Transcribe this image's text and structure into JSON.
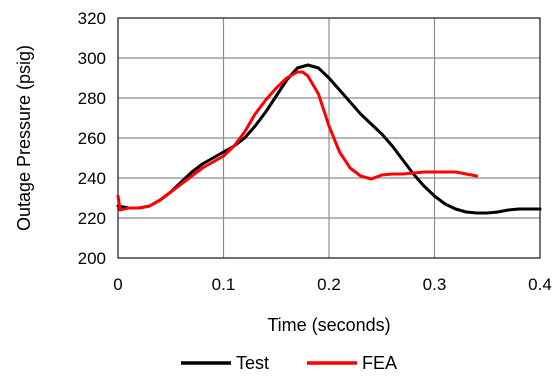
{
  "chart_data": {
    "type": "line",
    "title": "",
    "xlabel": "Time (seconds)",
    "ylabel": "Outage Pressure (psig)",
    "xlim": [
      0,
      0.4
    ],
    "ylim": [
      200,
      320
    ],
    "xticks": [
      0,
      0.1,
      0.2,
      0.3,
      0.4
    ],
    "xtick_labels": [
      "0",
      "0.1",
      "0.2",
      "0.3",
      "0.4"
    ],
    "yticks": [
      200,
      220,
      240,
      260,
      280,
      300,
      320
    ],
    "ytick_labels": [
      "200",
      "220",
      "240",
      "260",
      "280",
      "300",
      "320"
    ],
    "grid": true,
    "legend_position": "bottom",
    "series": [
      {
        "name": "Test",
        "color": "#000000",
        "points": [
          [
            0.0,
            226
          ],
          [
            0.01,
            225
          ],
          [
            0.02,
            225
          ],
          [
            0.03,
            226
          ],
          [
            0.04,
            229
          ],
          [
            0.05,
            233
          ],
          [
            0.06,
            238
          ],
          [
            0.07,
            243
          ],
          [
            0.08,
            247
          ],
          [
            0.09,
            250
          ],
          [
            0.1,
            253
          ],
          [
            0.11,
            256
          ],
          [
            0.12,
            260
          ],
          [
            0.13,
            266
          ],
          [
            0.14,
            273
          ],
          [
            0.15,
            281
          ],
          [
            0.16,
            289
          ],
          [
            0.17,
            295
          ],
          [
            0.18,
            296.5
          ],
          [
            0.19,
            295
          ],
          [
            0.2,
            290
          ],
          [
            0.21,
            284
          ],
          [
            0.22,
            278
          ],
          [
            0.23,
            272
          ],
          [
            0.24,
            267
          ],
          [
            0.25,
            262
          ],
          [
            0.26,
            256
          ],
          [
            0.27,
            249
          ],
          [
            0.28,
            242
          ],
          [
            0.29,
            236
          ],
          [
            0.3,
            231
          ],
          [
            0.31,
            227
          ],
          [
            0.32,
            224.5
          ],
          [
            0.33,
            223
          ],
          [
            0.34,
            222.5
          ],
          [
            0.35,
            222.5
          ],
          [
            0.36,
            223
          ],
          [
            0.37,
            224
          ],
          [
            0.38,
            224.5
          ],
          [
            0.39,
            224.5
          ],
          [
            0.4,
            224.5
          ]
        ]
      },
      {
        "name": "FEA",
        "color": "#ff0000",
        "points": [
          [
            0.0,
            231
          ],
          [
            0.002,
            224
          ],
          [
            0.01,
            225
          ],
          [
            0.02,
            225
          ],
          [
            0.03,
            226
          ],
          [
            0.04,
            229
          ],
          [
            0.05,
            233
          ],
          [
            0.06,
            237
          ],
          [
            0.07,
            241
          ],
          [
            0.08,
            245
          ],
          [
            0.09,
            248
          ],
          [
            0.1,
            251
          ],
          [
            0.11,
            256
          ],
          [
            0.12,
            263
          ],
          [
            0.13,
            272
          ],
          [
            0.14,
            279
          ],
          [
            0.15,
            285
          ],
          [
            0.16,
            290
          ],
          [
            0.17,
            293
          ],
          [
            0.175,
            293
          ],
          [
            0.18,
            291
          ],
          [
            0.19,
            282
          ],
          [
            0.2,
            266
          ],
          [
            0.21,
            253
          ],
          [
            0.22,
            245
          ],
          [
            0.23,
            241
          ],
          [
            0.24,
            239.5
          ],
          [
            0.25,
            241.5
          ],
          [
            0.26,
            242
          ],
          [
            0.27,
            242
          ],
          [
            0.28,
            242.5
          ],
          [
            0.29,
            243
          ],
          [
            0.3,
            243
          ],
          [
            0.31,
            243
          ],
          [
            0.32,
            243
          ],
          [
            0.33,
            242
          ],
          [
            0.34,
            241
          ]
        ]
      }
    ]
  }
}
